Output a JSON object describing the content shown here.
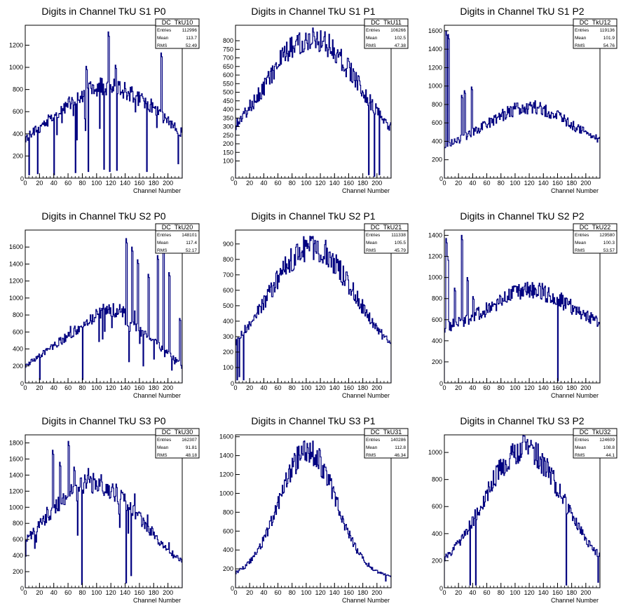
{
  "colors": {
    "histogram": "#000080",
    "frame": "#000000",
    "background": "#ffffff"
  },
  "chart_data": [
    {
      "type": "histogram",
      "title": "Digits in Channel TkU S1 P0",
      "xlabel": "Channel Number",
      "ylabel": "",
      "xlim": [
        0,
        220
      ],
      "ylim": [
        0,
        1380
      ],
      "xticks": [
        "0",
        "20",
        "40",
        "60",
        "80",
        "100",
        "120",
        "140",
        "160",
        "180",
        "200"
      ],
      "yticks": [
        "200",
        "400",
        "600",
        "800",
        "1000",
        "1200"
      ],
      "stats": {
        "name": "DC_TkU10",
        "entries": "112996",
        "mean": "113.7",
        "rms": "52.49"
      },
      "shape": "bimodal",
      "peak": 950,
      "base": 150,
      "center": 115,
      "width": 75,
      "spikes": [
        [
          116,
          1320
        ],
        [
          190,
          1130
        ],
        [
          126,
          1020
        ],
        [
          85,
          1010
        ]
      ],
      "dips": [
        [
          5,
          30
        ],
        [
          17,
          40
        ],
        [
          40,
          30
        ],
        [
          70,
          50
        ],
        [
          88,
          60
        ],
        [
          110,
          80
        ],
        [
          118,
          60
        ],
        [
          128,
          70
        ],
        [
          170,
          60
        ],
        [
          214,
          130
        ]
      ]
    },
    {
      "type": "histogram",
      "title": "Digits in Channel TkU S1 P1",
      "xlabel": "Channel Number",
      "ylabel": "",
      "xlim": [
        0,
        220
      ],
      "ylim": [
        0,
        890
      ],
      "xticks": [
        "0",
        "20",
        "40",
        "60",
        "80",
        "100",
        "120",
        "140",
        "160",
        "180",
        "200"
      ],
      "yticks": [
        "100",
        "150",
        "200",
        "250",
        "300",
        "350",
        "400",
        "450",
        "500",
        "550",
        "600",
        "650",
        "700",
        "750",
        "800"
      ],
      "stats": {
        "name": "DC_TkU11",
        "entries": "106266",
        "mean": "102.5",
        "rms": "47.38"
      },
      "shape": "hump",
      "peak": 820,
      "base": 140,
      "center": 108,
      "width": 65,
      "spikes": [
        [
          110,
          850
        ]
      ],
      "dips": [
        [
          188,
          20
        ],
        [
          196,
          10
        ],
        [
          203,
          20
        ]
      ]
    },
    {
      "type": "histogram",
      "title": "Digits in Channel TkU S1 P2",
      "xlabel": "Channel Number",
      "ylabel": "",
      "xlim": [
        0,
        220
      ],
      "ylim": [
        0,
        1660
      ],
      "xticks": [
        "0",
        "20",
        "40",
        "60",
        "80",
        "100",
        "120",
        "140",
        "160",
        "180",
        "200"
      ],
      "yticks": [
        "200",
        "400",
        "600",
        "800",
        "1000",
        "1200",
        "1400",
        "1600"
      ],
      "stats": {
        "name": "DC_TkU12",
        "entries": "119136",
        "mean": "101.9",
        "rms": "54.76"
      },
      "shape": "lowhump",
      "peak": 770,
      "base": 300,
      "center": 120,
      "width": 60,
      "spikes": [
        [
          2,
          1600
        ],
        [
          5,
          1560
        ],
        [
          38,
          990
        ],
        [
          28,
          950
        ],
        [
          24,
          900
        ]
      ],
      "dips": []
    },
    {
      "type": "histogram",
      "title": "Digits in Channel TkU S2 P0",
      "xlabel": "Channel Number",
      "ylabel": "",
      "xlim": [
        0,
        220
      ],
      "ylim": [
        0,
        1800
      ],
      "xticks": [
        "0",
        "20",
        "40",
        "60",
        "80",
        "100",
        "120",
        "140",
        "160",
        "180",
        "200"
      ],
      "yticks": [
        "200",
        "400",
        "600",
        "800",
        "1000",
        "1200",
        "1400",
        "1600"
      ],
      "stats": {
        "name": "DC_TkU20",
        "entries": "148101",
        "mean": "117.4",
        "rms": "52.17"
      },
      "shape": "rising",
      "peak": 850,
      "base": 200,
      "center": 120,
      "width": 80,
      "spikes": [
        [
          141,
          1700
        ],
        [
          193,
          1700
        ],
        [
          149,
          1600
        ],
        [
          185,
          1500
        ],
        [
          157,
          1450
        ],
        [
          201,
          1300
        ],
        [
          172,
          1280
        ],
        [
          216,
          760
        ]
      ],
      "dips": [
        [
          20,
          40
        ],
        [
          80,
          40
        ],
        [
          145,
          250
        ],
        [
          165,
          200
        ],
        [
          205,
          150
        ]
      ]
    },
    {
      "type": "histogram",
      "title": "Digits in Channel TkU S2 P1",
      "xlabel": "Channel Number",
      "ylabel": "",
      "xlim": [
        0,
        220
      ],
      "ylim": [
        0,
        990
      ],
      "xticks": [
        "0",
        "20",
        "40",
        "60",
        "80",
        "100",
        "120",
        "140",
        "160",
        "180",
        "200"
      ],
      "yticks": [
        "100",
        "200",
        "300",
        "400",
        "500",
        "600",
        "700",
        "800",
        "900"
      ],
      "stats": {
        "name": "DC_TkU21",
        "entries": "111338",
        "mean": "105.5",
        "rms": "45.79"
      },
      "shape": "hump",
      "peak": 880,
      "base": 120,
      "center": 108,
      "width": 60,
      "spikes": [
        [
          105,
          950
        ]
      ],
      "dips": [
        [
          2,
          20
        ],
        [
          5,
          40
        ],
        [
          11,
          20
        ]
      ]
    },
    {
      "type": "histogram",
      "title": "Digits in Channel TkU S2 P2",
      "xlabel": "Channel Number",
      "ylabel": "",
      "xlim": [
        0,
        220
      ],
      "ylim": [
        0,
        1450
      ],
      "xticks": [
        "0",
        "20",
        "40",
        "60",
        "80",
        "100",
        "120",
        "140",
        "160",
        "180",
        "200"
      ],
      "yticks": [
        "200",
        "400",
        "600",
        "800",
        "1000",
        "1200",
        "1400"
      ],
      "stats": {
        "name": "DC_TkU22",
        "entries": "129580",
        "mean": "100.3",
        "rms": "53.57"
      },
      "shape": "lowhump",
      "peak": 880,
      "base": 500,
      "center": 122,
      "width": 55,
      "spikes": [
        [
          2,
          1370
        ],
        [
          24,
          1400
        ],
        [
          4,
          1200
        ],
        [
          32,
          1000
        ],
        [
          14,
          900
        ],
        [
          40,
          820
        ]
      ],
      "dips": [
        [
          160,
          20
        ]
      ]
    },
    {
      "type": "histogram",
      "title": "Digits in Channel TkU S3 P0",
      "xlabel": "Channel Number",
      "ylabel": "",
      "xlim": [
        0,
        220
      ],
      "ylim": [
        0,
        1900
      ],
      "xticks": [
        "0",
        "20",
        "40",
        "60",
        "80",
        "100",
        "120",
        "140",
        "160",
        "180",
        "200"
      ],
      "yticks": [
        "200",
        "400",
        "600",
        "800",
        "1000",
        "1200",
        "1400",
        "1600",
        "1800"
      ],
      "stats": {
        "name": "DC_TkU30",
        "entries": "162307",
        "mean": "91.81",
        "rms": "48.18"
      },
      "shape": "bumpy",
      "peak": 1300,
      "base": 80,
      "center": 95,
      "width": 70,
      "spikes": [
        [
          60,
          1820
        ],
        [
          38,
          1710
        ],
        [
          48,
          1560
        ],
        [
          68,
          1500
        ],
        [
          30,
          1000
        ]
      ],
      "dips": [
        [
          79,
          40
        ],
        [
          141,
          60
        ],
        [
          148,
          150
        ]
      ]
    },
    {
      "type": "histogram",
      "title": "Digits in Channel TkU S3 P1",
      "xlabel": "Channel Number",
      "ylabel": "",
      "xlim": [
        0,
        220
      ],
      "ylim": [
        0,
        1620
      ],
      "xticks": [
        "0",
        "20",
        "40",
        "60",
        "80",
        "100",
        "120",
        "140",
        "160",
        "180",
        "200"
      ],
      "yticks": [
        "200",
        "400",
        "600",
        "800",
        "1000",
        "1200",
        "1400",
        "1600"
      ],
      "stats": {
        "name": "DC_TkU31",
        "entries": "140286",
        "mean": "112.8",
        "rms": "46.34"
      },
      "shape": "peaked",
      "peak": 1450,
      "base": 110,
      "center": 102,
      "width": 40,
      "spikes": [
        [
          101,
          1530
        ],
        [
          116,
          1300
        ]
      ],
      "dips": [
        [
          212,
          70
        ]
      ]
    },
    {
      "type": "histogram",
      "title": "Digits in Channel TkU S3 P2",
      "xlabel": "Channel Number",
      "ylabel": "",
      "xlim": [
        0,
        220
      ],
      "ylim": [
        0,
        1130
      ],
      "xticks": [
        "0",
        "20",
        "40",
        "60",
        "80",
        "100",
        "120",
        "140",
        "160",
        "180",
        "200"
      ],
      "yticks": [
        "200",
        "400",
        "600",
        "800",
        "1000"
      ],
      "stats": {
        "name": "DC_TkU32",
        "entries": "124609",
        "mean": "108.8",
        "rms": "44.1"
      },
      "shape": "hump",
      "peak": 1030,
      "base": 100,
      "center": 112,
      "width": 55,
      "spikes": [
        [
          122,
          1090
        ]
      ],
      "dips": [
        [
          36,
          20
        ],
        [
          44,
          20
        ],
        [
          172,
          20
        ],
        [
          217,
          40
        ]
      ]
    }
  ]
}
